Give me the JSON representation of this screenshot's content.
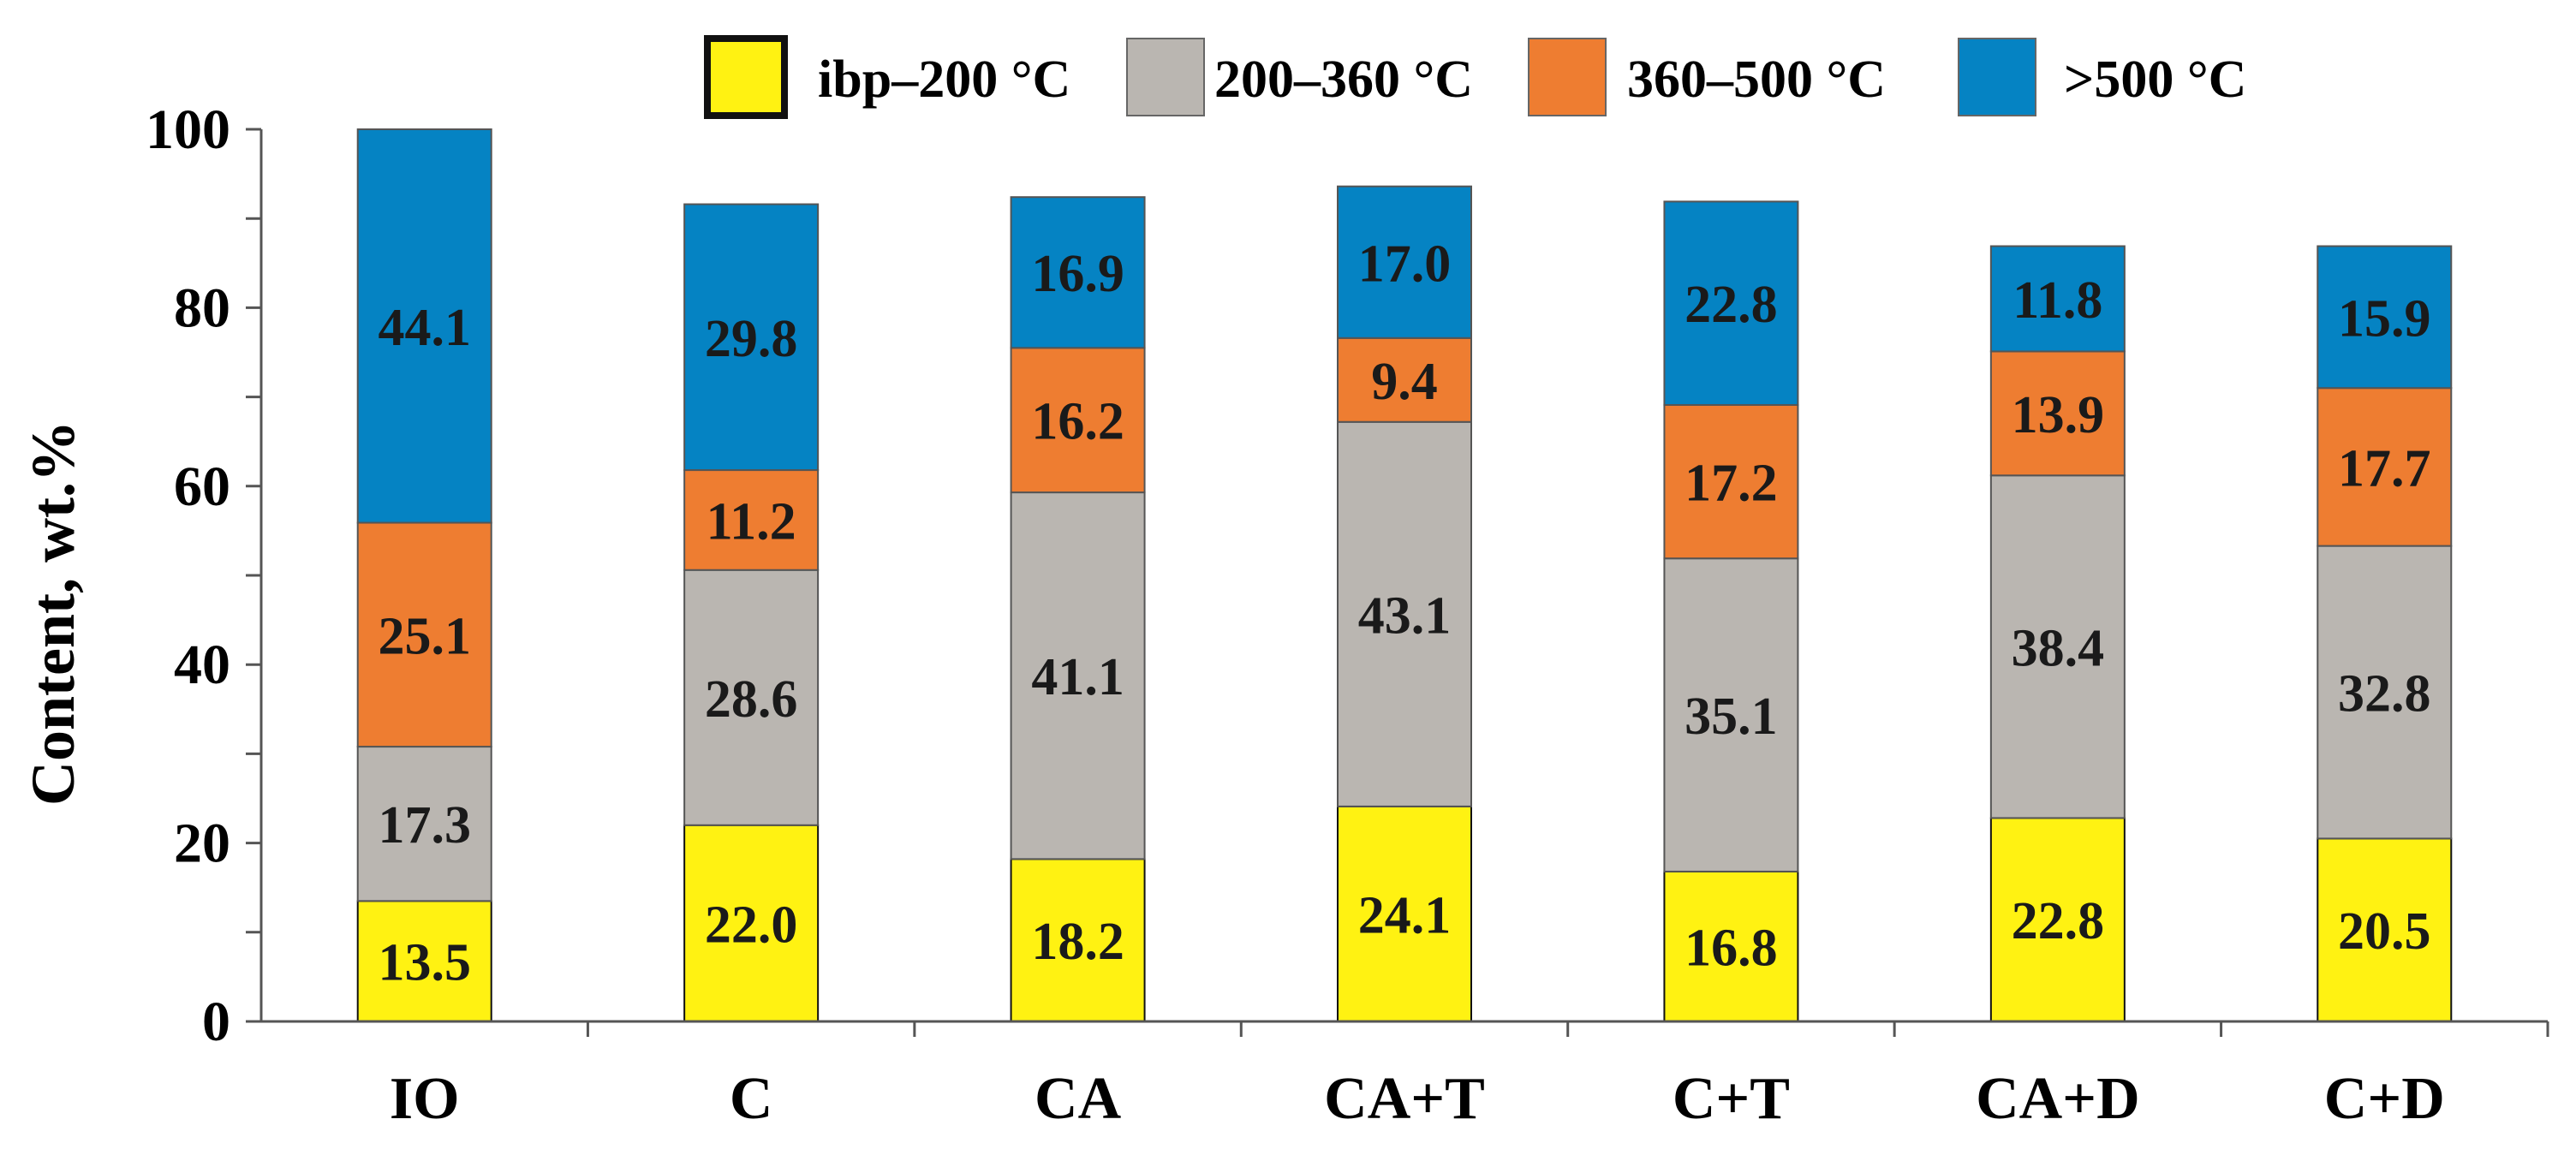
{
  "chart_data": {
    "type": "bar",
    "stacked": true,
    "title": "",
    "xlabel": "",
    "ylabel": "Content, wt.%",
    "ylim": [
      0,
      100
    ],
    "yticks": [
      0,
      20,
      40,
      60,
      80,
      100
    ],
    "categories": [
      "IO",
      "C",
      "CA",
      "CA+T",
      "C+T",
      "CA+D",
      "C+D"
    ],
    "series": [
      {
        "name": "ibp–200 °C",
        "color": "#FFF212",
        "border": "#111111",
        "values": [
          13.5,
          22.0,
          18.2,
          24.1,
          16.8,
          22.8,
          20.5
        ]
      },
      {
        "name": "200–360 °C",
        "color": "#BAB6B1",
        "border": "#555555",
        "values": [
          17.3,
          28.6,
          41.1,
          43.1,
          35.1,
          38.4,
          32.8
        ]
      },
      {
        "name": "360–500 °C",
        "color": "#EE7D31",
        "border": "#555555",
        "values": [
          25.1,
          11.2,
          16.2,
          9.4,
          17.2,
          13.9,
          17.7
        ]
      },
      {
        "name": ">500 °C",
        "color": "#0583C3",
        "border": "#555555",
        "values": [
          44.1,
          29.8,
          16.9,
          17.0,
          22.8,
          11.8,
          15.9
        ]
      }
    ],
    "data_labels": [
      [
        "13.5",
        "22.0",
        "18.2",
        "24.1",
        "16.8",
        "22.8",
        "20.5"
      ],
      [
        "17.3",
        "28.6",
        "41.1",
        "43.1",
        "35.1",
        "38.4",
        "32.8"
      ],
      [
        "25.1",
        "11.2",
        "16.2",
        "9.4",
        "17.2",
        "13.9",
        "17.7"
      ],
      [
        "44.1",
        "29.8",
        "16.9",
        "17.0",
        "22.8",
        "11.8",
        "15.9"
      ]
    ],
    "legend": "top",
    "grid": false
  }
}
